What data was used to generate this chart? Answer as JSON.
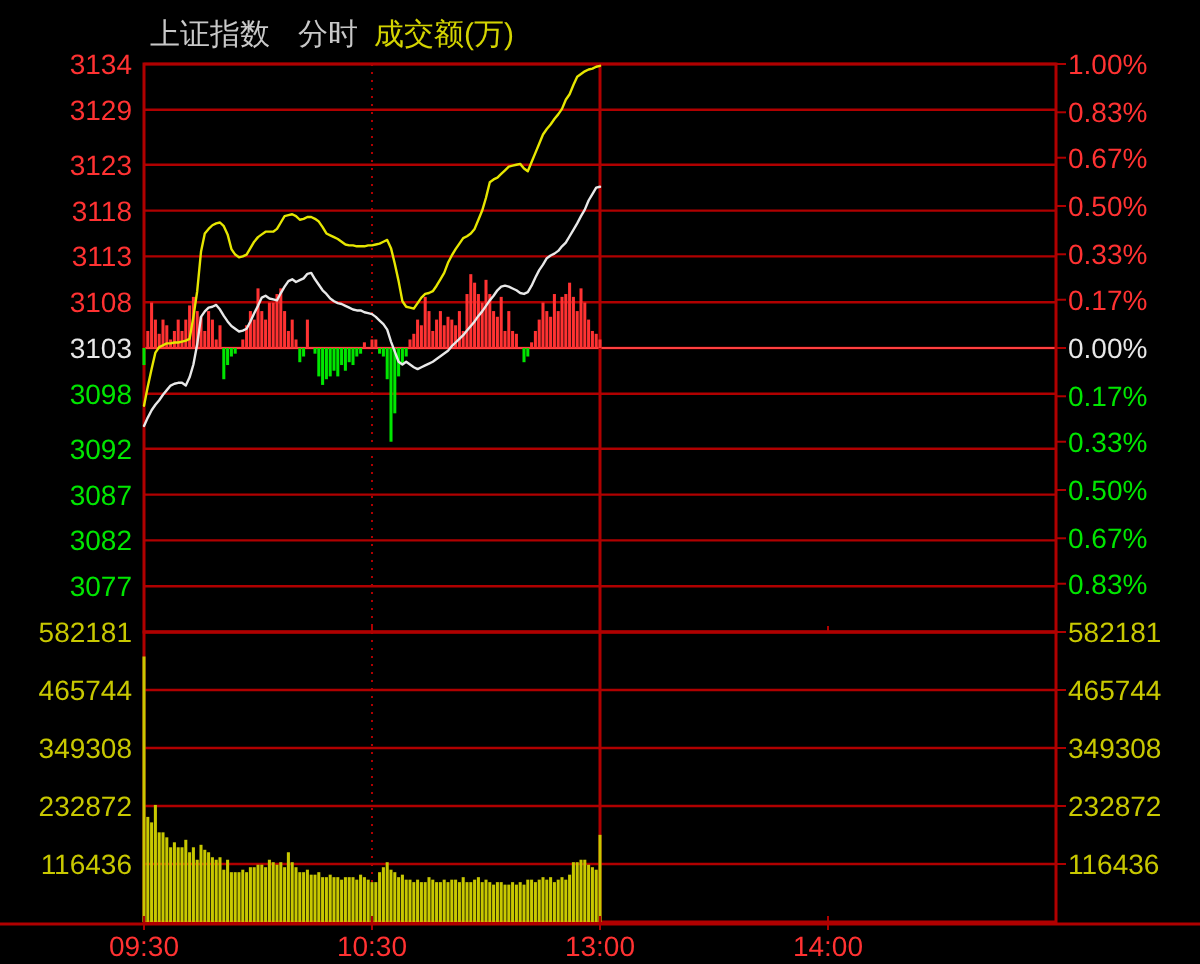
{
  "chart_data": [
    {
      "type": "line",
      "title": "上证指数",
      "subtitle": "分时",
      "ylim": [
        3072,
        3134
      ],
      "yticks": [
        3077,
        3082,
        3087,
        3092,
        3098,
        3103,
        3108,
        3113,
        3118,
        3123,
        3129,
        3134
      ],
      "y2lim": [
        -1,
        1
      ],
      "y2ticks": [
        {
          "value": -0.83,
          "label": "0.83%"
        },
        {
          "value": -0.67,
          "label": "0.67%"
        },
        {
          "value": -0.5,
          "label": "0.50%"
        },
        {
          "value": -0.33,
          "label": "0.33%"
        },
        {
          "value": -0.17,
          "label": "0.17%"
        },
        {
          "value": 0,
          "label": "0.00%"
        },
        {
          "value": 0.17,
          "label": "0.17%"
        },
        {
          "value": 0.33,
          "label": "0.33%"
        },
        {
          "value": 0.5,
          "label": "0.50%"
        },
        {
          "value": 0.67,
          "label": "0.67%"
        },
        {
          "value": 0.83,
          "label": "0.83%"
        },
        {
          "value": 1,
          "label": "1.00%"
        }
      ],
      "tick_labels": "y",
      "grid": "y",
      "annotations": [
        "成交额(万)"
      ],
      "ref_lines": [
        {
          "axis": "y",
          "value": 3103,
          "color": "#ff4040"
        },
        {
          "axis": "x",
          "value": "10:30",
          "line_style": "dotted"
        },
        {
          "axis": "x",
          "value": "13:00"
        }
      ],
      "categories": [
        "09:30",
        null,
        null,
        null,
        null,
        null,
        null,
        null,
        null,
        null,
        null,
        null,
        null,
        null,
        null,
        null,
        null,
        null,
        null,
        null,
        null,
        null,
        null,
        null,
        null,
        null,
        null,
        null,
        null,
        null,
        null,
        null,
        null,
        null,
        null,
        null,
        null,
        null,
        null,
        null,
        null,
        null,
        null,
        null,
        null,
        null,
        null,
        null,
        null,
        null,
        null,
        null,
        null,
        null,
        null,
        null,
        null,
        null,
        null,
        null,
        "10:30",
        null,
        null,
        null,
        null,
        null,
        null,
        null,
        null,
        null,
        null,
        null,
        null,
        null,
        null,
        null,
        null,
        null,
        null,
        null,
        null,
        null,
        null,
        null,
        null,
        null,
        null,
        null,
        null,
        null,
        null,
        null,
        null,
        null,
        null,
        null,
        null,
        null,
        null,
        null,
        null,
        null,
        null,
        null,
        null,
        null,
        null,
        null,
        null,
        null,
        null,
        null,
        null,
        null,
        null,
        null,
        null,
        null,
        null,
        null,
        "13:00",
        null,
        null,
        null,
        null,
        null,
        null,
        null,
        null,
        null,
        null,
        null,
        null,
        null,
        null,
        null,
        null,
        null,
        null,
        null,
        null,
        null,
        null,
        null,
        null,
        null,
        null,
        null,
        null,
        null,
        null,
        null,
        null,
        null,
        null,
        null,
        null,
        null,
        null,
        null,
        null,
        null,
        null,
        null,
        null,
        null,
        null,
        null,
        null,
        null,
        null,
        null,
        null,
        null,
        null,
        null,
        null,
        null,
        null,
        null,
        "14:00",
        null,
        null,
        null,
        null,
        null,
        null,
        null,
        null,
        null,
        null,
        null,
        null,
        null,
        null,
        null,
        null,
        null,
        null,
        null,
        null,
        null,
        null,
        null,
        null,
        null,
        null,
        null,
        null,
        null,
        null,
        null,
        null,
        null,
        null,
        null,
        null,
        null,
        null,
        null,
        null,
        null,
        null,
        null,
        null,
        null,
        null,
        null,
        null,
        null,
        null,
        null,
        null,
        null,
        null,
        null,
        null,
        null,
        null,
        null,
        null
      ],
      "series": [
        {
          "type": "bar",
          "axis": "y2",
          "values": [
            -0.06,
            0.06,
            0.16,
            0.1,
            0.05,
            0.1,
            0.08,
            0.03,
            0.06,
            0.1,
            0.06,
            0.1,
            0.15,
            0.18,
            0.13,
            0.11,
            0.06,
            0.13,
            0.1,
            0.03,
            0.08,
            -0.11,
            -0.06,
            -0.03,
            -0.02,
            0,
            0.03,
            0.08,
            0.13,
            0.1,
            0.21,
            0.13,
            0.1,
            0.16,
            0.16,
            0.19,
            0.21,
            0.13,
            0.06,
            0.1,
            0.03,
            -0.05,
            -0.03,
            0.1,
            0,
            -0.02,
            -0.1,
            -0.13,
            -0.11,
            -0.1,
            -0.08,
            -0.1,
            -0.06,
            -0.08,
            -0.05,
            -0.06,
            -0.03,
            -0.02,
            0.02,
            0,
            0.03,
            0.03,
            -0.02,
            -0.03,
            -0.11,
            -0.33,
            -0.23,
            -0.1,
            -0.06,
            -0.03,
            0.03,
            0.05,
            0.1,
            0.08,
            0.18,
            0.13,
            0.06,
            0.1,
            0.13,
            0.08,
            0.11,
            0.1,
            0.08,
            0.13,
            0.06,
            0.19,
            0.26,
            0.23,
            0.19,
            0.16,
            0.24,
            0.19,
            0.13,
            0.11,
            0.18,
            0.06,
            0.13,
            0.06,
            0.05,
            0,
            -0.05,
            -0.03,
            0.02,
            0.06,
            0.1,
            0.16,
            0.13,
            0.11,
            0.19,
            0.13,
            0.18,
            0.19,
            0.23,
            0.18,
            0.13,
            0.21,
            0.16,
            0.1,
            0.06,
            0.05,
            0.03,
            null,
            null,
            null,
            null,
            null,
            null,
            null,
            null,
            null,
            null,
            null,
            null,
            null,
            null,
            null,
            null,
            null,
            null,
            null,
            null,
            null,
            null,
            null,
            null,
            null,
            null,
            null,
            null,
            null,
            null,
            null,
            null,
            null,
            null,
            null,
            null,
            null,
            null,
            null,
            null,
            null,
            null,
            null,
            null,
            null,
            null,
            null,
            null,
            null,
            null,
            null,
            null,
            null,
            null,
            null,
            null,
            null,
            null,
            null,
            null,
            null,
            null,
            null,
            null,
            null,
            null,
            null,
            null,
            null,
            null,
            null,
            null,
            null,
            null,
            null,
            null,
            null,
            null,
            null,
            null,
            null,
            null,
            null,
            null,
            null,
            null,
            null,
            null,
            null,
            null,
            null,
            null,
            null,
            null,
            null,
            null,
            null,
            null,
            null,
            null,
            null,
            null,
            null,
            null,
            null,
            null,
            null,
            null,
            null,
            null,
            null,
            null,
            null,
            null,
            null,
            null,
            null,
            null,
            null,
            null
          ],
          "colors": [
            "#00e600",
            "#ff3232",
            "#ff3232",
            "#ff3232",
            "#ff3232",
            "#ff3232",
            "#ff3232",
            "#ff3232",
            "#ff3232",
            "#ff3232",
            "#ff3232",
            "#ff3232",
            "#ff3232",
            "#ff3232",
            "#ff3232",
            "#ff3232",
            "#ff3232",
            "#ff3232",
            "#ff3232",
            "#ff3232",
            "#ff3232",
            "#00e600",
            "#00e600",
            "#00e600",
            "#00e600",
            "#ff3232",
            "#ff3232",
            "#ff3232",
            "#ff3232",
            "#ff3232",
            "#ff3232",
            "#ff3232",
            "#ff3232",
            "#ff3232",
            "#ff3232",
            "#ff3232",
            "#ff3232",
            "#ff3232",
            "#ff3232",
            "#ff3232",
            "#ff3232",
            "#00e600",
            "#00e600",
            "#ff3232",
            "#ff3232",
            "#00e600",
            "#00e600",
            "#00e600",
            "#00e600",
            "#00e600",
            "#00e600",
            "#00e600",
            "#00e600",
            "#00e600",
            "#00e600",
            "#00e600",
            "#00e600",
            "#00e600",
            "#ff3232",
            "#ff3232",
            "#ff3232",
            "#ff3232",
            "#00e600",
            "#00e600",
            "#00e600",
            "#00e600",
            "#00e600",
            "#00e600",
            "#00e600",
            "#00e600",
            "#ff3232",
            "#ff3232",
            "#ff3232",
            "#ff3232",
            "#ff3232",
            "#ff3232",
            "#ff3232",
            "#ff3232",
            "#ff3232",
            "#ff3232",
            "#ff3232",
            "#ff3232",
            "#ff3232",
            "#ff3232",
            "#ff3232",
            "#ff3232",
            "#ff3232",
            "#ff3232",
            "#ff3232",
            "#ff3232",
            "#ff3232",
            "#ff3232",
            "#ff3232",
            "#ff3232",
            "#ff3232",
            "#ff3232",
            "#ff3232",
            "#ff3232",
            "#ff3232",
            "#ff3232",
            "#00e600",
            "#00e600",
            "#ff3232",
            "#ff3232",
            "#ff3232",
            "#ff3232",
            "#ff3232",
            "#ff3232",
            "#ff3232",
            "#ff3232",
            "#ff3232",
            "#ff3232",
            "#ff3232",
            "#ff3232",
            "#ff3232",
            "#ff3232",
            "#ff3232",
            "#ff3232",
            "#ff3232",
            "#ff3232",
            "#ff3232",
            null,
            null,
            null,
            null,
            null,
            null,
            null,
            null,
            null,
            null,
            null,
            null,
            null,
            null,
            null,
            null,
            null,
            null,
            null,
            null,
            null,
            null,
            null,
            null,
            null,
            null,
            null,
            null,
            null,
            null,
            null,
            null,
            null,
            null,
            null,
            null,
            null,
            null,
            null,
            null,
            null,
            null,
            null,
            null,
            null,
            null,
            null,
            null,
            null,
            null,
            null,
            null,
            null,
            null,
            null,
            null,
            null,
            null,
            null,
            null,
            null,
            null,
            null,
            null,
            null,
            null,
            null,
            null,
            null,
            null,
            null,
            null,
            null,
            null,
            null,
            null,
            null,
            null,
            null,
            null,
            null,
            null,
            null,
            null,
            null,
            null,
            null,
            null,
            null,
            null,
            null,
            null,
            null,
            null,
            null,
            null,
            null,
            null,
            null,
            null,
            null,
            null,
            null,
            null,
            null,
            null,
            null,
            null,
            null,
            null,
            null,
            null,
            null,
            null,
            null,
            null,
            null,
            null,
            null,
            null
          ]
        },
        {
          "color": "#e6e600",
          "values": [
            3096.7,
            3098.8,
            3100.7,
            3102.5,
            3103.1,
            3103.3,
            3103.5,
            3103.5,
            3103.6,
            3103.6,
            3103.7,
            3103.8,
            3104.0,
            3106.4,
            3109.2,
            3113.5,
            3115.5,
            3116.0,
            3116.4,
            3116.6,
            3116.7,
            3116.3,
            3115.4,
            3113.8,
            3113.2,
            3112.9,
            3113.0,
            3113.2,
            3113.9,
            3114.6,
            3115.1,
            3115.4,
            3115.7,
            3115.7,
            3115.7,
            3116.0,
            3116.7,
            3117.4,
            3117.5,
            3117.6,
            3117.4,
            3117.0,
            3117.1,
            3117.3,
            3117.3,
            3117.1,
            3116.8,
            3116.2,
            3115.5,
            3115.3,
            3115.1,
            3114.9,
            3114.6,
            3114.3,
            3114.2,
            3114.2,
            3114.1,
            3114.1,
            3114.1,
            3114.2,
            3114.2,
            3114.3,
            3114.4,
            3114.6,
            3114.8,
            3113.9,
            3112.2,
            3110.3,
            3108.1,
            3107.5,
            3107.4,
            3107.3,
            3107.9,
            3108.5,
            3108.9,
            3109.0,
            3109.2,
            3109.8,
            3110.5,
            3111.2,
            3112.3,
            3113.1,
            3113.8,
            3114.4,
            3115.0,
            3115.2,
            3115.5,
            3116.0,
            3117.0,
            3118.0,
            3119.4,
            3121.1,
            3121.4,
            3121.6,
            3122.0,
            3122.4,
            3122.8,
            3122.9,
            3123.0,
            3123.1,
            3122.6,
            3122.3,
            3123.3,
            3124.3,
            3125.3,
            3126.3,
            3126.9,
            3127.4,
            3128.0,
            3128.5,
            3129.1,
            3130.1,
            3130.7,
            3131.7,
            3132.6,
            3132.9,
            3133.2,
            3133.4,
            3133.5,
            3133.7,
            3133.8,
            null,
            null,
            null,
            null,
            null,
            null,
            null,
            null,
            null,
            null,
            null,
            null,
            null,
            null,
            null,
            null,
            null,
            null,
            null,
            null,
            null,
            null,
            null,
            null,
            null,
            null,
            null,
            null,
            null,
            null,
            null,
            null,
            null,
            null,
            null,
            null,
            null,
            null,
            null,
            null,
            null,
            null,
            null,
            null,
            null,
            null,
            null,
            null,
            null,
            null,
            null,
            null,
            null,
            null,
            null,
            null,
            null,
            null,
            null,
            null,
            null,
            null,
            null,
            null,
            null,
            null,
            null,
            null,
            null,
            null,
            null,
            null,
            null,
            null,
            null,
            null,
            null,
            null,
            null,
            null,
            null,
            null,
            null,
            null,
            null,
            null,
            null,
            null,
            null,
            null,
            null,
            null,
            null,
            null,
            null,
            null,
            null,
            null,
            null,
            null,
            null,
            null,
            null,
            null,
            null,
            null,
            null,
            null,
            null,
            null,
            null,
            null,
            null,
            null,
            null,
            null,
            null,
            null,
            null,
            null
          ]
        },
        {
          "color": "#e8e8e8",
          "values": [
            3094.5,
            3095.4,
            3096.2,
            3096.8,
            3097.3,
            3097.9,
            3098.4,
            3098.9,
            3099.1,
            3099.2,
            3099.2,
            3098.9,
            3099.8,
            3101.2,
            3103.4,
            3106.4,
            3107.0,
            3107.4,
            3107.5,
            3107.7,
            3107.2,
            3106.5,
            3105.9,
            3105.4,
            3105.1,
            3104.8,
            3104.9,
            3105.1,
            3105.9,
            3106.8,
            3107.6,
            3108.5,
            3108.7,
            3108.4,
            3108.3,
            3108.2,
            3109.0,
            3109.7,
            3110.3,
            3110.5,
            3110.2,
            3110.4,
            3110.6,
            3111.1,
            3111.2,
            3110.5,
            3109.9,
            3109.3,
            3108.9,
            3108.4,
            3108.1,
            3107.9,
            3107.8,
            3107.6,
            3107.4,
            3107.2,
            3107.1,
            3107.1,
            3106.9,
            3106.8,
            3106.7,
            3106.4,
            3106.0,
            3105.6,
            3105.0,
            3103.7,
            3102.6,
            3101.5,
            3101.2,
            3101.5,
            3101.2,
            3100.9,
            3100.7,
            3100.9,
            3101.1,
            3101.3,
            3101.5,
            3101.8,
            3102.1,
            3102.4,
            3102.7,
            3103.2,
            3103.6,
            3104.0,
            3104.4,
            3104.9,
            3105.4,
            3105.9,
            3106.5,
            3107.0,
            3107.6,
            3108.2,
            3108.7,
            3109.3,
            3109.7,
            3109.8,
            3109.7,
            3109.5,
            3109.3,
            3109.0,
            3108.9,
            3109.1,
            3109.8,
            3110.7,
            3111.5,
            3112.1,
            3112.8,
            3113.1,
            3113.3,
            3113.6,
            3114.1,
            3114.5,
            3115.2,
            3115.9,
            3116.6,
            3117.4,
            3118.1,
            3119.1,
            3119.8,
            3120.5,
            3120.6,
            null,
            null,
            null,
            null,
            null,
            null,
            null,
            null,
            null,
            null,
            null,
            null,
            null,
            null,
            null,
            null,
            null,
            null,
            null,
            null,
            null,
            null,
            null,
            null,
            null,
            null,
            null,
            null,
            null,
            null,
            null,
            null,
            null,
            null,
            null,
            null,
            null,
            null,
            null,
            null,
            null,
            null,
            null,
            null,
            null,
            null,
            null,
            null,
            null,
            null,
            null,
            null,
            null,
            null,
            null,
            null,
            null,
            null,
            null,
            null,
            null,
            null,
            null,
            null,
            null,
            null,
            null,
            null,
            null,
            null,
            null,
            null,
            null,
            null,
            null,
            null,
            null,
            null,
            null,
            null,
            null,
            null,
            null,
            null,
            null,
            null,
            null,
            null,
            null,
            null,
            null,
            null,
            null,
            null,
            null,
            null,
            null,
            null,
            null,
            null,
            null,
            null,
            null,
            null,
            null,
            null,
            null,
            null,
            null,
            null,
            null,
            null,
            null,
            null,
            null,
            null,
            null,
            null,
            null,
            null
          ]
        }
      ]
    },
    {
      "type": "bar",
      "ylim": [
        0,
        582181
      ],
      "yticks": [
        116436,
        232872,
        349308,
        465744,
        582181
      ],
      "y2lim": [
        0,
        582181
      ],
      "y2ticks": [
        116436,
        232872,
        349308,
        465744,
        582181
      ],
      "grid": "y",
      "ref_lines": [
        {
          "axis": "x",
          "value": "10:30",
          "line_style": "dotted"
        },
        {
          "axis": "x",
          "value": "13:00"
        }
      ],
      "categories": [
        "09:30",
        null,
        null,
        null,
        null,
        null,
        null,
        null,
        null,
        null,
        null,
        null,
        null,
        null,
        null,
        null,
        null,
        null,
        null,
        null,
        null,
        null,
        null,
        null,
        null,
        null,
        null,
        null,
        null,
        null,
        null,
        null,
        null,
        null,
        null,
        null,
        null,
        null,
        null,
        null,
        null,
        null,
        null,
        null,
        null,
        null,
        null,
        null,
        null,
        null,
        null,
        null,
        null,
        null,
        null,
        null,
        null,
        null,
        null,
        null,
        "10:30",
        null,
        null,
        null,
        null,
        null,
        null,
        null,
        null,
        null,
        null,
        null,
        null,
        null,
        null,
        null,
        null,
        null,
        null,
        null,
        null,
        null,
        null,
        null,
        null,
        null,
        null,
        null,
        null,
        null,
        null,
        null,
        null,
        null,
        null,
        null,
        null,
        null,
        null,
        null,
        null,
        null,
        null,
        null,
        null,
        null,
        null,
        null,
        null,
        null,
        null,
        null,
        null,
        null,
        null,
        null,
        null,
        null,
        null,
        null,
        "13:00",
        null,
        null,
        null,
        null,
        null,
        null,
        null,
        null,
        null,
        null,
        null,
        null,
        null,
        null,
        null,
        null,
        null,
        null,
        null,
        null,
        null,
        null,
        null,
        null,
        null,
        null,
        null,
        null,
        null,
        null,
        null,
        null,
        null,
        null,
        null,
        null,
        null,
        null,
        null,
        null,
        null,
        null,
        null,
        null,
        null,
        null,
        null,
        null,
        null,
        null,
        null,
        null,
        null,
        null,
        null,
        null,
        null,
        null,
        null,
        "14:00",
        null,
        null,
        null,
        null,
        null,
        null,
        null,
        null,
        null,
        null,
        null,
        null,
        null,
        null,
        null,
        null,
        null,
        null,
        null,
        null,
        null,
        null,
        null,
        null,
        null,
        null,
        null,
        null,
        null,
        null,
        null,
        null,
        null,
        null,
        null,
        null,
        null,
        null,
        null,
        null,
        null,
        null,
        null,
        null,
        null,
        null,
        null,
        null,
        null,
        null,
        null,
        null,
        null,
        null,
        null,
        null,
        null,
        null,
        null,
        null
      ],
      "series": [
        {
          "color": "#c8c800",
          "values": [
            533000,
            211000,
            200000,
            235000,
            180000,
            180000,
            170000,
            150000,
            160000,
            150000,
            150000,
            165000,
            140000,
            150000,
            125000,
            155000,
            145000,
            140000,
            130000,
            125000,
            130000,
            105000,
            125000,
            100000,
            100000,
            100000,
            105000,
            100000,
            110000,
            110000,
            115000,
            115000,
            110000,
            125000,
            120000,
            115000,
            120000,
            110000,
            140000,
            120000,
            110000,
            100000,
            100000,
            105000,
            95000,
            95000,
            100000,
            90000,
            90000,
            95000,
            90000,
            90000,
            85000,
            90000,
            90000,
            90000,
            85000,
            95000,
            90000,
            85000,
            80000,
            80000,
            100000,
            110000,
            120000,
            105000,
            100000,
            90000,
            95000,
            85000,
            85000,
            80000,
            85000,
            80000,
            80000,
            90000,
            85000,
            80000,
            80000,
            85000,
            80000,
            85000,
            85000,
            80000,
            90000,
            80000,
            80000,
            85000,
            90000,
            80000,
            85000,
            80000,
            75000,
            80000,
            80000,
            75000,
            75000,
            80000,
            75000,
            80000,
            75000,
            85000,
            85000,
            80000,
            85000,
            90000,
            85000,
            90000,
            80000,
            85000,
            90000,
            85000,
            95000,
            120000,
            120000,
            125000,
            125000,
            115000,
            110000,
            105000,
            175000,
            null,
            null,
            null,
            null,
            null,
            null,
            null,
            null,
            null,
            null,
            null,
            null,
            null,
            null,
            null,
            null,
            null,
            null,
            null,
            null,
            null,
            null,
            null,
            null,
            null,
            null,
            null,
            null,
            null,
            null,
            null,
            null,
            null,
            null,
            null,
            null,
            null,
            null,
            null,
            null,
            null,
            null,
            null,
            null,
            null,
            null,
            null,
            null,
            null,
            null,
            null,
            null,
            null,
            null,
            null,
            null,
            null,
            null,
            null,
            null,
            null,
            null,
            null,
            null,
            null,
            null,
            null,
            null,
            null,
            null,
            null,
            null,
            null,
            null,
            null,
            null,
            null,
            null,
            null,
            null,
            null,
            null,
            null,
            null,
            null,
            null,
            null,
            null,
            null,
            null,
            null,
            null,
            null,
            null,
            null,
            null,
            null,
            null,
            null,
            null,
            null,
            null,
            null,
            null,
            null,
            null,
            null,
            null,
            null,
            null,
            null,
            null,
            null,
            null,
            null,
            null,
            null,
            null,
            null,
            null
          ]
        }
      ]
    }
  ]
}
